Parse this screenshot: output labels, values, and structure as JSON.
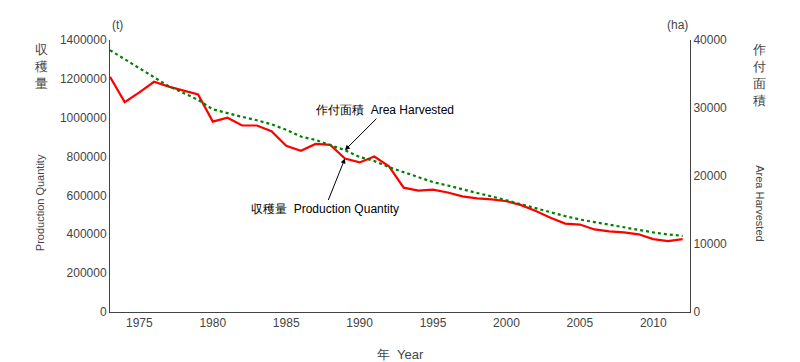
{
  "chart_data": {
    "type": "line",
    "xlabel": "年  Year",
    "x": [
      1973,
      1974,
      1975,
      1976,
      1977,
      1978,
      1979,
      1980,
      1981,
      1982,
      1983,
      1984,
      1985,
      1986,
      1987,
      1988,
      1989,
      1990,
      1991,
      1992,
      1993,
      1994,
      1995,
      1996,
      1997,
      1998,
      1999,
      2000,
      2001,
      2002,
      2003,
      2004,
      2005,
      2006,
      2007,
      2008,
      2009,
      2010,
      2011,
      2012
    ],
    "series": [
      {
        "values": [
          1210000,
          1080000,
          1130000,
          1185000,
          1160000,
          1140000,
          1120000,
          980000,
          1000000,
          960000,
          960000,
          930000,
          855000,
          830000,
          865000,
          860000,
          790000,
          770000,
          800000,
          750000,
          640000,
          625000,
          630000,
          615000,
          595000,
          585000,
          580000,
          570000,
          550000,
          520000,
          485000,
          455000,
          450000,
          425000,
          415000,
          410000,
          400000,
          375000,
          365000,
          375000
        ],
        "color": "#ff0000",
        "line_style": "solid",
        "annotation": "収穫量  Production Quantity"
      },
      {
        "values": [
          38500,
          37200,
          35800,
          34500,
          33200,
          32200,
          31200,
          29800,
          29200,
          28700,
          28200,
          27600,
          26800,
          25800,
          25300,
          24600,
          23800,
          22800,
          22200,
          21300,
          20600,
          19800,
          19100,
          18600,
          18000,
          17500,
          17000,
          16400,
          15800,
          15200,
          14600,
          14100,
          13600,
          13200,
          12800,
          12400,
          12100,
          11700,
          11400,
          11200
        ],
        "color": "#008000",
        "line_style": "dotted",
        "axis": "y2",
        "annotation": "作付面積  Area Harvested"
      }
    ],
    "ylabel": {
      "stacked": [
        "収",
        "穫",
        "量"
      ],
      "text": "Production Quantity",
      "unit": "(t)"
    },
    "y2label": {
      "stacked": [
        "作",
        "付",
        "面",
        "積"
      ],
      "text": "Area Harvested",
      "unit": "(ha)"
    },
    "xlim": [
      1973,
      2012.5
    ],
    "xticks": [
      1975,
      1980,
      1985,
      1990,
      1995,
      2000,
      2005,
      2010
    ],
    "ylim": [
      0,
      1400000
    ],
    "yticks": [
      0,
      200000,
      400000,
      600000,
      800000,
      1000000,
      1200000,
      1400000
    ],
    "y2lim": [
      0,
      40000
    ],
    "y2ticks": [
      0,
      10000,
      20000,
      30000,
      40000
    ],
    "grid": false
  }
}
